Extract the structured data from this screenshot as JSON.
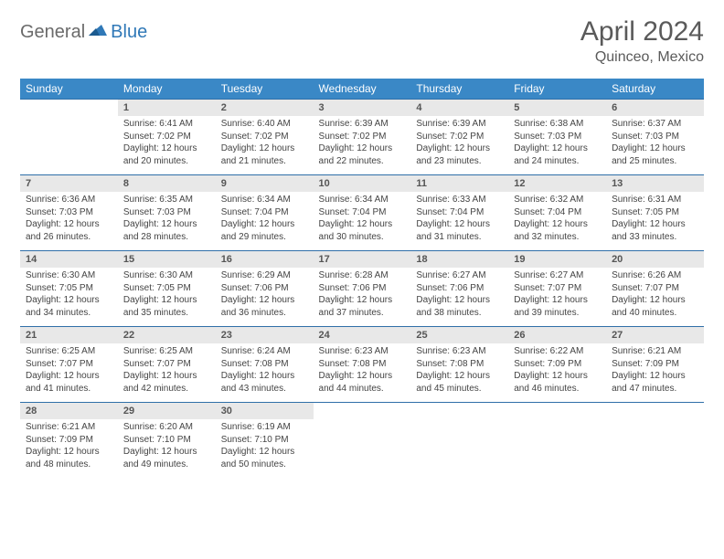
{
  "logo": {
    "part1": "General",
    "part2": "Blue"
  },
  "title": "April 2024",
  "location": "Quinceo, Mexico",
  "colors": {
    "header_bg": "#3a88c6",
    "header_text": "#ffffff",
    "daynum_bg": "#e8e8e8",
    "rule": "#2f6fa8",
    "body_text": "#444444",
    "title_text": "#5a5a5a"
  },
  "day_headers": [
    "Sunday",
    "Monday",
    "Tuesday",
    "Wednesday",
    "Thursday",
    "Friday",
    "Saturday"
  ],
  "weeks": [
    {
      "nums": [
        "",
        "1",
        "2",
        "3",
        "4",
        "5",
        "6"
      ],
      "cells": [
        null,
        {
          "sunrise": "Sunrise: 6:41 AM",
          "sunset": "Sunset: 7:02 PM",
          "dl1": "Daylight: 12 hours",
          "dl2": "and 20 minutes."
        },
        {
          "sunrise": "Sunrise: 6:40 AM",
          "sunset": "Sunset: 7:02 PM",
          "dl1": "Daylight: 12 hours",
          "dl2": "and 21 minutes."
        },
        {
          "sunrise": "Sunrise: 6:39 AM",
          "sunset": "Sunset: 7:02 PM",
          "dl1": "Daylight: 12 hours",
          "dl2": "and 22 minutes."
        },
        {
          "sunrise": "Sunrise: 6:39 AM",
          "sunset": "Sunset: 7:02 PM",
          "dl1": "Daylight: 12 hours",
          "dl2": "and 23 minutes."
        },
        {
          "sunrise": "Sunrise: 6:38 AM",
          "sunset": "Sunset: 7:03 PM",
          "dl1": "Daylight: 12 hours",
          "dl2": "and 24 minutes."
        },
        {
          "sunrise": "Sunrise: 6:37 AM",
          "sunset": "Sunset: 7:03 PM",
          "dl1": "Daylight: 12 hours",
          "dl2": "and 25 minutes."
        }
      ]
    },
    {
      "nums": [
        "7",
        "8",
        "9",
        "10",
        "11",
        "12",
        "13"
      ],
      "cells": [
        {
          "sunrise": "Sunrise: 6:36 AM",
          "sunset": "Sunset: 7:03 PM",
          "dl1": "Daylight: 12 hours",
          "dl2": "and 26 minutes."
        },
        {
          "sunrise": "Sunrise: 6:35 AM",
          "sunset": "Sunset: 7:03 PM",
          "dl1": "Daylight: 12 hours",
          "dl2": "and 28 minutes."
        },
        {
          "sunrise": "Sunrise: 6:34 AM",
          "sunset": "Sunset: 7:04 PM",
          "dl1": "Daylight: 12 hours",
          "dl2": "and 29 minutes."
        },
        {
          "sunrise": "Sunrise: 6:34 AM",
          "sunset": "Sunset: 7:04 PM",
          "dl1": "Daylight: 12 hours",
          "dl2": "and 30 minutes."
        },
        {
          "sunrise": "Sunrise: 6:33 AM",
          "sunset": "Sunset: 7:04 PM",
          "dl1": "Daylight: 12 hours",
          "dl2": "and 31 minutes."
        },
        {
          "sunrise": "Sunrise: 6:32 AM",
          "sunset": "Sunset: 7:04 PM",
          "dl1": "Daylight: 12 hours",
          "dl2": "and 32 minutes."
        },
        {
          "sunrise": "Sunrise: 6:31 AM",
          "sunset": "Sunset: 7:05 PM",
          "dl1": "Daylight: 12 hours",
          "dl2": "and 33 minutes."
        }
      ]
    },
    {
      "nums": [
        "14",
        "15",
        "16",
        "17",
        "18",
        "19",
        "20"
      ],
      "cells": [
        {
          "sunrise": "Sunrise: 6:30 AM",
          "sunset": "Sunset: 7:05 PM",
          "dl1": "Daylight: 12 hours",
          "dl2": "and 34 minutes."
        },
        {
          "sunrise": "Sunrise: 6:30 AM",
          "sunset": "Sunset: 7:05 PM",
          "dl1": "Daylight: 12 hours",
          "dl2": "and 35 minutes."
        },
        {
          "sunrise": "Sunrise: 6:29 AM",
          "sunset": "Sunset: 7:06 PM",
          "dl1": "Daylight: 12 hours",
          "dl2": "and 36 minutes."
        },
        {
          "sunrise": "Sunrise: 6:28 AM",
          "sunset": "Sunset: 7:06 PM",
          "dl1": "Daylight: 12 hours",
          "dl2": "and 37 minutes."
        },
        {
          "sunrise": "Sunrise: 6:27 AM",
          "sunset": "Sunset: 7:06 PM",
          "dl1": "Daylight: 12 hours",
          "dl2": "and 38 minutes."
        },
        {
          "sunrise": "Sunrise: 6:27 AM",
          "sunset": "Sunset: 7:07 PM",
          "dl1": "Daylight: 12 hours",
          "dl2": "and 39 minutes."
        },
        {
          "sunrise": "Sunrise: 6:26 AM",
          "sunset": "Sunset: 7:07 PM",
          "dl1": "Daylight: 12 hours",
          "dl2": "and 40 minutes."
        }
      ]
    },
    {
      "nums": [
        "21",
        "22",
        "23",
        "24",
        "25",
        "26",
        "27"
      ],
      "cells": [
        {
          "sunrise": "Sunrise: 6:25 AM",
          "sunset": "Sunset: 7:07 PM",
          "dl1": "Daylight: 12 hours",
          "dl2": "and 41 minutes."
        },
        {
          "sunrise": "Sunrise: 6:25 AM",
          "sunset": "Sunset: 7:07 PM",
          "dl1": "Daylight: 12 hours",
          "dl2": "and 42 minutes."
        },
        {
          "sunrise": "Sunrise: 6:24 AM",
          "sunset": "Sunset: 7:08 PM",
          "dl1": "Daylight: 12 hours",
          "dl2": "and 43 minutes."
        },
        {
          "sunrise": "Sunrise: 6:23 AM",
          "sunset": "Sunset: 7:08 PM",
          "dl1": "Daylight: 12 hours",
          "dl2": "and 44 minutes."
        },
        {
          "sunrise": "Sunrise: 6:23 AM",
          "sunset": "Sunset: 7:08 PM",
          "dl1": "Daylight: 12 hours",
          "dl2": "and 45 minutes."
        },
        {
          "sunrise": "Sunrise: 6:22 AM",
          "sunset": "Sunset: 7:09 PM",
          "dl1": "Daylight: 12 hours",
          "dl2": "and 46 minutes."
        },
        {
          "sunrise": "Sunrise: 6:21 AM",
          "sunset": "Sunset: 7:09 PM",
          "dl1": "Daylight: 12 hours",
          "dl2": "and 47 minutes."
        }
      ]
    },
    {
      "nums": [
        "28",
        "29",
        "30",
        "",
        "",
        "",
        ""
      ],
      "cells": [
        {
          "sunrise": "Sunrise: 6:21 AM",
          "sunset": "Sunset: 7:09 PM",
          "dl1": "Daylight: 12 hours",
          "dl2": "and 48 minutes."
        },
        {
          "sunrise": "Sunrise: 6:20 AM",
          "sunset": "Sunset: 7:10 PM",
          "dl1": "Daylight: 12 hours",
          "dl2": "and 49 minutes."
        },
        {
          "sunrise": "Sunrise: 6:19 AM",
          "sunset": "Sunset: 7:10 PM",
          "dl1": "Daylight: 12 hours",
          "dl2": "and 50 minutes."
        },
        null,
        null,
        null,
        null
      ]
    }
  ]
}
